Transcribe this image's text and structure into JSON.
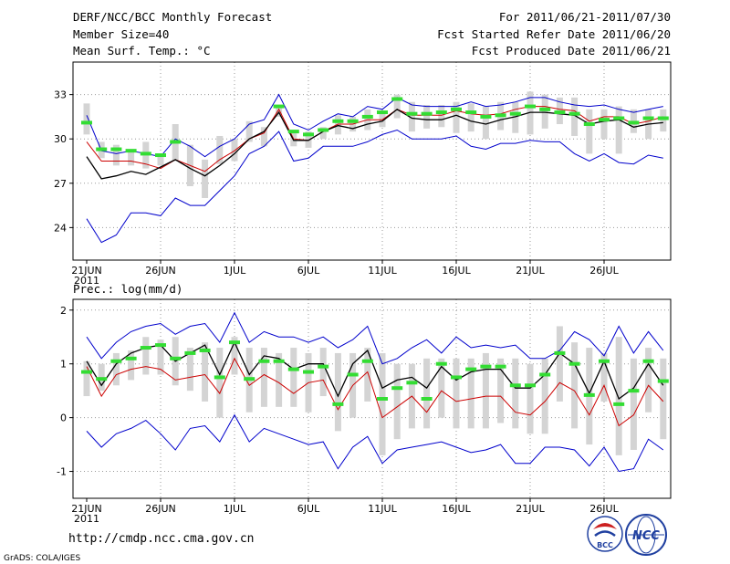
{
  "header": {
    "title": "DERF/NCC/BCC Monthly Forecast",
    "member_size": "Member Size=40",
    "variable": "Mean Surf. Temp.: °C",
    "period": "For 2011/06/21-2011/07/30",
    "start_ref": "Fcst Started Refer Date 2011/06/20",
    "produced": "Fcst Produced Date 2011/06/21"
  },
  "footer": {
    "url": "http://cmdp.ncc.cma.gov.cn",
    "grads": "GrADS: COLA/IGES",
    "logo_bcc": "BCC",
    "logo_ncc": "NCC"
  },
  "colors": {
    "ensemble_mean": "#000000",
    "envelope": "#0000cc",
    "climatology": "#cc0000",
    "median_marker": "#33dd33",
    "spread_bar": "#d4d4d4",
    "grid": "#999999"
  },
  "chart_data": [
    {
      "type": "line",
      "title": "Mean Surf. Temp.: °C",
      "xlabel": "",
      "ylabel": "°C",
      "x_tick_labels": [
        "21JUN",
        "26JUN",
        "1JUL",
        "6JUL",
        "11JUL",
        "16JUL",
        "21JUL",
        "26JUL"
      ],
      "x_year_label": "2011",
      "ylim": [
        21.8,
        35.2
      ],
      "y_ticks": [
        24,
        27,
        30,
        33
      ],
      "grid": true,
      "days": 40,
      "series": [
        {
          "name": "upper",
          "values": [
            31.6,
            29.2,
            29.0,
            29.2,
            29.0,
            28.8,
            30.0,
            29.5,
            28.8,
            29.5,
            30.0,
            31.0,
            31.3,
            33.0,
            31.0,
            30.6,
            31.2,
            31.7,
            31.5,
            32.2,
            32.0,
            32.8,
            32.3,
            32.2,
            32.2,
            32.2,
            32.5,
            32.2,
            32.3,
            32.5,
            32.8,
            32.8,
            32.5,
            32.3,
            32.2,
            32.3,
            32.0,
            31.8,
            32.0,
            32.2
          ]
        },
        {
          "name": "clim",
          "values": [
            29.8,
            28.5,
            28.5,
            28.5,
            28.3,
            28.0,
            28.6,
            28.2,
            27.8,
            28.6,
            29.2,
            30.0,
            30.4,
            32.0,
            30.0,
            29.9,
            30.5,
            31.0,
            31.0,
            31.3,
            31.3,
            32.0,
            31.6,
            31.6,
            31.6,
            31.9,
            31.7,
            31.6,
            31.7,
            32.0,
            32.2,
            32.2,
            32.0,
            31.9,
            31.2,
            31.5,
            31.5,
            31.0,
            31.2,
            31.5
          ]
        },
        {
          "name": "mean",
          "values": [
            28.8,
            27.3,
            27.5,
            27.8,
            27.6,
            28.1,
            28.6,
            28.0,
            27.5,
            28.2,
            29.0,
            30.0,
            30.5,
            31.8,
            29.9,
            29.9,
            30.5,
            30.9,
            30.7,
            31.0,
            31.2,
            32.0,
            31.4,
            31.3,
            31.3,
            31.6,
            31.2,
            31.0,
            31.3,
            31.5,
            31.8,
            31.8,
            31.7,
            31.6,
            31.0,
            31.2,
            31.3,
            30.8,
            31.0,
            31.1
          ]
        },
        {
          "name": "lower",
          "values": [
            24.6,
            23.0,
            23.5,
            25.0,
            25.0,
            24.8,
            26.0,
            25.5,
            25.5,
            26.5,
            27.5,
            29.0,
            29.5,
            30.5,
            28.5,
            28.7,
            29.5,
            29.5,
            29.5,
            29.8,
            30.3,
            30.6,
            30.0,
            30.0,
            30.0,
            30.2,
            29.5,
            29.3,
            29.7,
            29.7,
            29.9,
            29.8,
            29.8,
            29.0,
            28.5,
            29.0,
            28.4,
            28.3,
            28.9,
            28.7
          ]
        },
        {
          "name": "median",
          "values": [
            31.1,
            29.3,
            29.3,
            29.2,
            29.0,
            28.9,
            29.8,
            null,
            null,
            null,
            null,
            null,
            null,
            32.2,
            30.5,
            30.3,
            30.6,
            31.2,
            31.2,
            31.5,
            31.8,
            32.7,
            31.7,
            31.7,
            31.8,
            32.0,
            31.8,
            31.5,
            31.6,
            31.7,
            32.2,
            32.0,
            31.8,
            31.7,
            31.0,
            31.3,
            31.4,
            31.1,
            31.4,
            31.4
          ]
        },
        {
          "name": "spread_top",
          "values": [
            32.4,
            29.8,
            29.6,
            29.3,
            29.8,
            29.0,
            31.0,
            29.6,
            28.6,
            30.2,
            30.0,
            31.2,
            30.8,
            32.3,
            30.5,
            30.5,
            30.8,
            31.6,
            31.5,
            32.0,
            31.9,
            33.0,
            32.5,
            32.3,
            32.3,
            32.5,
            32.4,
            32.2,
            32.5,
            32.5,
            33.2,
            33.0,
            32.8,
            32.8,
            32.0,
            32.0,
            32.2,
            32.0,
            32.0,
            32.0
          ]
        },
        {
          "name": "spread_bottom",
          "values": [
            30.3,
            28.7,
            28.2,
            28.2,
            28.0,
            28.2,
            28.5,
            26.8,
            26.0,
            28.3,
            28.5,
            29.8,
            29.5,
            31.5,
            29.5,
            29.4,
            30.0,
            30.3,
            30.5,
            30.6,
            30.8,
            31.4,
            30.5,
            30.7,
            30.8,
            30.4,
            30.5,
            30.0,
            30.6,
            30.4,
            30.3,
            30.7,
            31.0,
            30.2,
            29.0,
            30.0,
            29.0,
            30.4,
            30.0,
            30.5
          ]
        }
      ]
    },
    {
      "type": "line",
      "title": "Prec.: log(mm/d)",
      "xlabel": "",
      "ylabel": "log(mm/d)",
      "x_tick_labels": [
        "21JUN",
        "26JUN",
        "1JUL",
        "6JUL",
        "11JUL",
        "16JUL",
        "21JUL",
        "26JUL"
      ],
      "x_year_label": "2011",
      "ylim": [
        -1.5,
        2.2
      ],
      "y_ticks": [
        -1,
        0,
        1,
        2
      ],
      "grid": true,
      "days": 40,
      "series": [
        {
          "name": "upper",
          "values": [
            1.5,
            1.1,
            1.4,
            1.6,
            1.7,
            1.75,
            1.55,
            1.7,
            1.75,
            1.4,
            1.95,
            1.4,
            1.6,
            1.5,
            1.5,
            1.4,
            1.5,
            1.3,
            1.45,
            1.7,
            1.0,
            1.1,
            1.3,
            1.45,
            1.2,
            1.5,
            1.3,
            1.35,
            1.3,
            1.35,
            1.1,
            1.1,
            1.25,
            1.6,
            1.45,
            1.15,
            1.7,
            1.2,
            1.6,
            1.25
          ]
        },
        {
          "name": "mean",
          "values": [
            1.05,
            0.6,
            1.0,
            1.2,
            1.3,
            1.35,
            1.05,
            1.2,
            1.35,
            0.8,
            1.4,
            0.8,
            1.15,
            1.1,
            0.9,
            1.0,
            1.0,
            0.4,
            1.0,
            1.25,
            0.55,
            0.7,
            0.75,
            0.55,
            0.95,
            0.7,
            0.85,
            0.9,
            0.9,
            0.55,
            0.55,
            0.8,
            1.2,
            1.0,
            0.45,
            1.05,
            0.35,
            0.55,
            1.0,
            0.6
          ]
        },
        {
          "name": "clim",
          "values": [
            0.95,
            0.4,
            0.8,
            0.9,
            0.95,
            0.9,
            0.7,
            0.75,
            0.8,
            0.45,
            1.1,
            0.6,
            0.8,
            0.65,
            0.45,
            0.65,
            0.7,
            0.15,
            0.6,
            0.85,
            0.0,
            0.2,
            0.4,
            0.1,
            0.5,
            0.3,
            0.35,
            0.4,
            0.4,
            0.1,
            0.05,
            0.3,
            0.65,
            0.5,
            0.05,
            0.6,
            -0.15,
            0.05,
            0.6,
            0.3
          ]
        },
        {
          "name": "lower",
          "values": [
            -0.25,
            -0.55,
            -0.3,
            -0.2,
            -0.05,
            -0.3,
            -0.6,
            -0.2,
            -0.15,
            -0.45,
            0.05,
            -0.45,
            -0.2,
            -0.3,
            -0.4,
            -0.5,
            -0.45,
            -0.95,
            -0.55,
            -0.35,
            -0.85,
            -0.6,
            -0.55,
            -0.5,
            -0.45,
            -0.55,
            -0.65,
            -0.6,
            -0.5,
            -0.85,
            -0.85,
            -0.55,
            -0.55,
            -0.6,
            -0.9,
            -0.55,
            -1.0,
            -0.95,
            -0.4,
            -0.6
          ]
        },
        {
          "name": "median",
          "values": [
            0.85,
            0.72,
            1.05,
            1.1,
            1.3,
            1.35,
            1.1,
            1.2,
            1.25,
            0.75,
            1.4,
            0.72,
            1.05,
            1.05,
            0.9,
            0.85,
            0.95,
            0.25,
            0.8,
            1.05,
            0.35,
            0.55,
            0.65,
            0.35,
            1.0,
            0.75,
            0.9,
            0.95,
            0.95,
            0.6,
            0.6,
            0.8,
            1.2,
            1.0,
            0.42,
            1.05,
            0.25,
            0.5,
            1.05,
            0.68
          ]
        },
        {
          "name": "spread_top",
          "values": [
            1.05,
            1.0,
            1.2,
            1.25,
            1.5,
            1.45,
            1.5,
            1.3,
            1.4,
            1.3,
            1.5,
            1.3,
            1.3,
            1.2,
            1.3,
            1.2,
            1.3,
            1.2,
            1.2,
            1.3,
            1.2,
            1.0,
            1.0,
            1.1,
            1.1,
            1.1,
            1.1,
            1.2,
            1.1,
            1.1,
            1.0,
            1.1,
            1.7,
            1.4,
            1.3,
            1.2,
            1.5,
            1.1,
            1.3,
            1.1
          ]
        },
        {
          "name": "spread_bottom",
          "values": [
            0.4,
            0.5,
            0.6,
            0.7,
            0.8,
            0.8,
            0.6,
            0.5,
            0.3,
            0.0,
            0.8,
            0.1,
            0.2,
            0.2,
            0.2,
            0.1,
            0.4,
            -0.25,
            0.0,
            0.3,
            -0.7,
            -0.4,
            -0.2,
            -0.2,
            0.0,
            -0.2,
            -0.2,
            -0.2,
            -0.1,
            -0.2,
            -0.3,
            -0.3,
            0.3,
            -0.2,
            -0.5,
            0.3,
            -0.7,
            -0.6,
            0.1,
            -0.4
          ]
        }
      ]
    }
  ]
}
